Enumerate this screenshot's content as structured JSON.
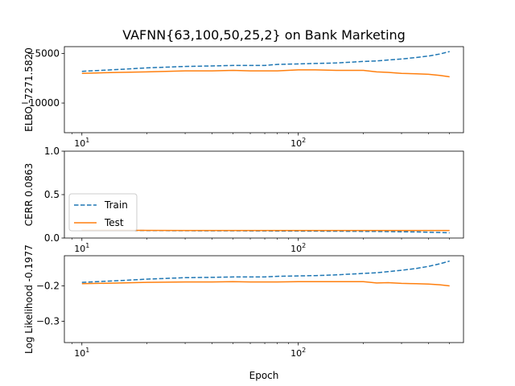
{
  "title": "VAFNN{63,100,50,25,2} on Bank Marketing",
  "xlabel": "Epoch",
  "colors": {
    "train": "#1f77b4",
    "test": "#ff7f0e",
    "axes": "#000000",
    "background": "#ffffff"
  },
  "legend": {
    "location": "lower-left of middle panel",
    "entries": [
      "Train",
      "Test"
    ]
  },
  "chart_data": [
    {
      "type": "line",
      "title": "VAFNN{63,100,50,25,2} on Bank Marketing",
      "xlabel": "",
      "ylabel": "ELBO -7271.5820",
      "xscale": "log",
      "xlim": [
        8.3,
        580
      ],
      "ylim": [
        -13000,
        -4300
      ],
      "xticks": [
        {
          "value": 10,
          "base": "10",
          "exp": "1"
        },
        {
          "value": 100,
          "base": "10",
          "exp": "2"
        }
      ],
      "yticks": [
        {
          "value": -10000,
          "label": "−10000"
        },
        {
          "value": -5000,
          "label": "−5000"
        }
      ],
      "x": [
        10,
        15,
        20,
        30,
        40,
        50,
        60,
        70,
        80,
        100,
        120,
        150,
        200,
        230,
        260,
        300,
        350,
        400,
        450,
        500
      ],
      "series": [
        {
          "name": "Train",
          "style": "dashed",
          "values": [
            -6800,
            -6600,
            -6450,
            -6300,
            -6250,
            -6200,
            -6200,
            -6200,
            -6100,
            -6050,
            -6000,
            -5950,
            -5800,
            -5750,
            -5650,
            -5550,
            -5400,
            -5250,
            -5050,
            -4800
          ]
        },
        {
          "name": "Test",
          "style": "solid",
          "values": [
            -7000,
            -6900,
            -6850,
            -6750,
            -6750,
            -6700,
            -6750,
            -6750,
            -6750,
            -6650,
            -6650,
            -6700,
            -6700,
            -6850,
            -6900,
            -7000,
            -7050,
            -7100,
            -7200,
            -7350
          ]
        }
      ]
    },
    {
      "type": "line",
      "xlabel": "",
      "ylabel": "CERR 0.0863",
      "xscale": "log",
      "xlim": [
        8.3,
        580
      ],
      "ylim": [
        0,
        1
      ],
      "xticks": [
        {
          "value": 10,
          "base": "10",
          "exp": "1"
        },
        {
          "value": 100,
          "base": "10",
          "exp": "2"
        }
      ],
      "yticks": [
        {
          "value": 0,
          "label": "0.0"
        },
        {
          "value": 0.5,
          "label": "0.5"
        },
        {
          "value": 1,
          "label": "1.0"
        }
      ],
      "x": [
        10,
        15,
        20,
        30,
        40,
        50,
        60,
        70,
        80,
        100,
        120,
        150,
        200,
        230,
        260,
        300,
        350,
        400,
        450,
        500
      ],
      "series": [
        {
          "name": "Train",
          "style": "dashed",
          "values": [
            0.09,
            0.088,
            0.086,
            0.084,
            0.083,
            0.083,
            0.082,
            0.082,
            0.081,
            0.081,
            0.08,
            0.079,
            0.077,
            0.076,
            0.074,
            0.072,
            0.07,
            0.067,
            0.064,
            0.06
          ]
        },
        {
          "name": "Test",
          "style": "solid",
          "values": [
            0.09,
            0.089,
            0.088,
            0.087,
            0.087,
            0.087,
            0.087,
            0.087,
            0.087,
            0.087,
            0.087,
            0.087,
            0.087,
            0.087,
            0.087,
            0.087,
            0.087,
            0.087,
            0.087,
            0.087
          ]
        }
      ]
    },
    {
      "type": "line",
      "xlabel": "Epoch",
      "ylabel": "Log Likelihood -0.1977",
      "xscale": "log",
      "xlim": [
        8.3,
        580
      ],
      "ylim": [
        -0.36,
        -0.115
      ],
      "xticks": [
        {
          "value": 10,
          "base": "10",
          "exp": "1"
        },
        {
          "value": 100,
          "base": "10",
          "exp": "2"
        }
      ],
      "yticks": [
        {
          "value": -0.3,
          "label": "−0.3"
        },
        {
          "value": -0.2,
          "label": "−0.2"
        }
      ],
      "x": [
        10,
        15,
        20,
        30,
        40,
        50,
        60,
        70,
        80,
        100,
        120,
        150,
        200,
        230,
        260,
        300,
        350,
        400,
        450,
        500
      ],
      "series": [
        {
          "name": "Train",
          "style": "dashed",
          "values": [
            -0.19,
            -0.185,
            -0.181,
            -0.177,
            -0.176,
            -0.175,
            -0.175,
            -0.175,
            -0.173,
            -0.172,
            -0.171,
            -0.169,
            -0.165,
            -0.163,
            -0.16,
            -0.156,
            -0.151,
            -0.145,
            -0.138,
            -0.13
          ]
        },
        {
          "name": "Test",
          "style": "solid",
          "values": [
            -0.194,
            -0.192,
            -0.19,
            -0.189,
            -0.189,
            -0.188,
            -0.189,
            -0.189,
            -0.189,
            -0.188,
            -0.188,
            -0.188,
            -0.188,
            -0.192,
            -0.191,
            -0.193,
            -0.194,
            -0.195,
            -0.197,
            -0.2
          ]
        }
      ]
    }
  ]
}
